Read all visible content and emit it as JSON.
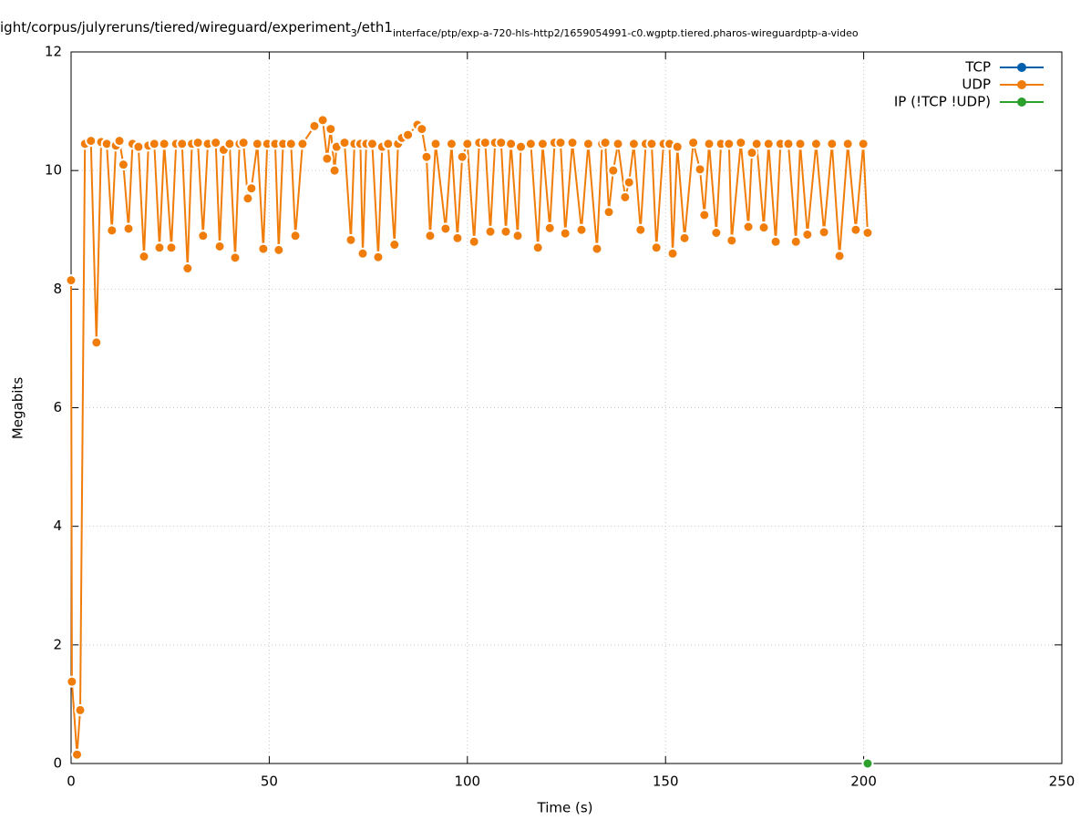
{
  "chart_data": {
    "type": "line",
    "title": [
      "ight/corpus/julyreruns/tiered/wireguard/experiment",
      "3",
      "/eth1",
      "interface/ptp/exp-a-720-hls-http2/1659054991-c0.wgptp.tiered.pharos-wireguardptp-a-video"
    ],
    "xlabel": "Time (s)",
    "ylabel": "Megabits",
    "xlim": [
      0,
      250
    ],
    "xticks": [
      0,
      50,
      100,
      150,
      200,
      250
    ],
    "ylim": [
      0,
      12
    ],
    "yticks": [
      0,
      2,
      4,
      6,
      8,
      10,
      12
    ],
    "grid": true,
    "legend": "top-right",
    "series": [
      {
        "name": "TCP",
        "color": "#0060ad",
        "x": [],
        "values": []
      },
      {
        "name": "UDP",
        "color": "#f07d0a",
        "x": [
          0,
          0.2,
          1.5,
          2.3,
          3.5,
          5,
          6.4,
          7.6,
          9,
          10.3,
          11.3,
          12.2,
          13.2,
          14.5,
          15.5,
          17,
          18.4,
          19.5,
          21,
          22.3,
          23.5,
          25.3,
          26.5,
          28,
          29.4,
          30.5,
          32,
          33.3,
          34.5,
          36.5,
          37.5,
          38.5,
          40,
          41.4,
          42.5,
          43.5,
          44.6,
          45.5,
          47,
          48.5,
          49.5,
          51.5,
          52.4,
          53.5,
          55.5,
          56.6,
          58.4,
          61.4,
          63.5,
          64.6,
          65.5,
          66.5,
          67,
          69,
          70.6,
          71.5,
          73,
          73.6,
          74.5,
          76,
          77.5,
          78.5,
          80,
          81.6,
          82.5,
          83.5,
          85,
          87.4,
          88.5,
          89.7,
          90.6,
          92,
          94.5,
          96,
          97.5,
          98.7,
          100,
          101.7,
          103,
          104.5,
          105.8,
          107,
          108.5,
          109.7,
          111,
          112.7,
          113.5,
          116,
          117.8,
          119,
          120.8,
          122,
          123.5,
          124.7,
          126.5,
          128.8,
          130.5,
          132.7,
          134,
          134.8,
          135.7,
          136.8,
          138,
          139.8,
          140.8,
          142,
          143.7,
          145,
          146.5,
          147.7,
          149.5,
          151,
          151.8,
          153,
          154.8,
          157,
          158.7,
          159.8,
          161,
          162.8,
          164,
          166,
          166.7,
          169,
          170.9,
          171.8,
          173,
          174.8,
          176,
          177.8,
          179,
          181,
          182.9,
          184,
          185.8,
          188,
          190,
          192,
          193.9,
          196,
          198,
          199.9,
          201
        ],
        "values": [
          8.15,
          1.38,
          0.15,
          0.9,
          10.45,
          10.5,
          7.1,
          10.48,
          10.45,
          8.99,
          10.42,
          10.5,
          10.1,
          9.02,
          10.45,
          10.4,
          8.55,
          10.42,
          10.45,
          8.7,
          10.45,
          8.7,
          10.45,
          10.45,
          8.35,
          10.45,
          10.47,
          8.9,
          10.45,
          10.47,
          8.72,
          10.35,
          10.45,
          8.53,
          10.45,
          10.47,
          9.53,
          9.7,
          10.45,
          8.68,
          10.45,
          10.45,
          8.66,
          10.45,
          10.45,
          8.9,
          10.45,
          10.75,
          10.85,
          10.2,
          10.7,
          10.0,
          10.4,
          10.47,
          8.83,
          10.45,
          10.45,
          8.6,
          10.45,
          10.45,
          8.54,
          10.4,
          10.45,
          8.75,
          10.45,
          10.55,
          10.6,
          10.77,
          10.7,
          10.23,
          8.9,
          10.45,
          9.02,
          10.45,
          8.86,
          10.23,
          10.45,
          8.8,
          10.47,
          10.47,
          8.97,
          10.47,
          10.47,
          8.97,
          10.45,
          8.9,
          10.4,
          10.45,
          8.7,
          10.45,
          9.03,
          10.47,
          10.47,
          8.94,
          10.47,
          9.0,
          10.45,
          8.68,
          10.45,
          10.47,
          9.3,
          10.0,
          10.45,
          9.55,
          9.8,
          10.45,
          9.0,
          10.45,
          10.45,
          8.7,
          10.45,
          10.45,
          8.6,
          10.4,
          8.86,
          10.47,
          10.02,
          9.25,
          10.45,
          8.95,
          10.45,
          10.45,
          8.82,
          10.47,
          9.05,
          10.3,
          10.45,
          9.04,
          10.45,
          8.8,
          10.45,
          10.45,
          8.8,
          10.45,
          8.92,
          10.45,
          8.96,
          10.45,
          8.56,
          10.45,
          9.0,
          10.45,
          8.95
        ]
      },
      {
        "name": "IP (!TCP  !UDP)",
        "color": "#2ca02c",
        "x": [
          201
        ],
        "values": [
          0
        ]
      }
    ]
  }
}
